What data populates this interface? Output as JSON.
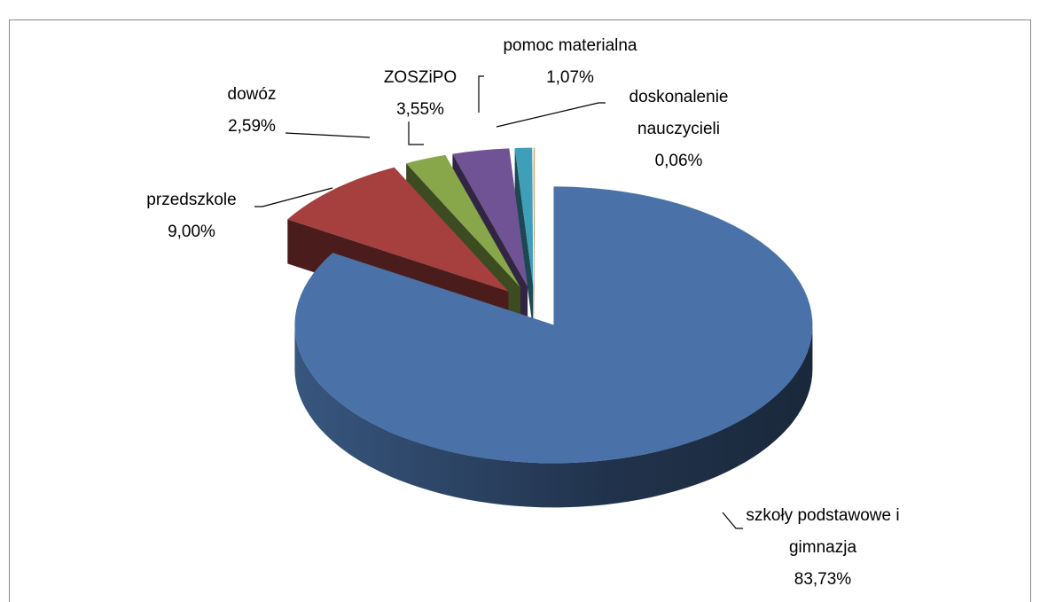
{
  "chart_data": {
    "type": "pie3d",
    "categories": [
      "szkoły podstawowe i gimnazja",
      "przedszkole",
      "dowóz",
      "ZOSZiPO",
      "pomoc materialna",
      "doskonalenie nauczycieli"
    ],
    "values": [
      83.73,
      9.0,
      2.59,
      3.55,
      1.07,
      0.06
    ],
    "value_labels": [
      "83,73%",
      "9,00%",
      "2,59%",
      "3,55%",
      "1,07%",
      "0,06%"
    ],
    "colors": [
      "#4a72a8",
      "#a5403f",
      "#88a64a",
      "#6f5395",
      "#3f9fb8",
      "#e08a3c"
    ]
  }
}
